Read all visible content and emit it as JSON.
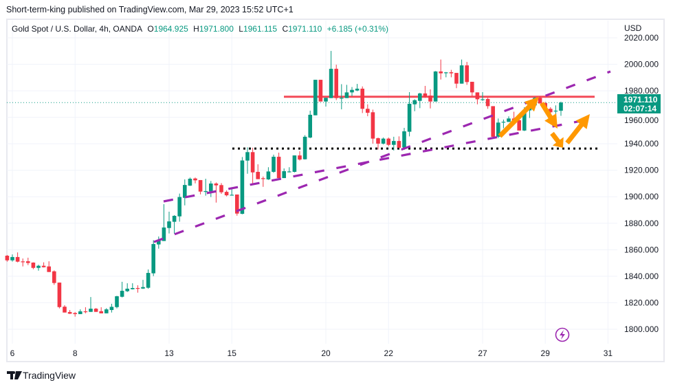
{
  "publisher_line": "Short-term-king published on TradingView.com, Mar 29, 2023 15:52 UTC+1",
  "legend": {
    "symbol": "Gold Spot / U.S. Dollar, 4h, OANDA",
    "open_label": "O",
    "open": "1964.925",
    "high_label": "H",
    "high": "1971.800",
    "low_label": "L",
    "low": "1961.115",
    "close_label": "C",
    "close": "1971.110",
    "change": "+6.185 (+0.31%)"
  },
  "price_tag": {
    "price": "1971.110",
    "countdown": "02:07:14"
  },
  "brand": "TradingView",
  "icons": {
    "logo": "tradingview-logo",
    "alert": "lightning-icon"
  },
  "colors": {
    "up": "#089981",
    "down": "#f23645",
    "trendline": "#9c27b0",
    "arrow": "#ff9800",
    "resistance": "#f23645",
    "support": "#000000"
  },
  "chart_data": {
    "type": "candlestick",
    "currency": "USD",
    "timeframe": "4h",
    "ylim": [
      1790,
      2025
    ],
    "y_ticks": [
      "2020.000",
      "2000.000",
      "1980.000",
      "1960.000",
      "1940.000",
      "1920.000",
      "1900.000",
      "1880.000",
      "1860.000",
      "1840.000",
      "1820.000",
      "1800.000"
    ],
    "x_ticks": [
      "6",
      "8",
      "13",
      "15",
      "20",
      "22",
      "27",
      "29",
      "31"
    ],
    "grid": true,
    "last_price": 1971.11,
    "levels": [
      {
        "kind": "resistance",
        "price": 1975.5,
        "style": "solid"
      },
      {
        "kind": "support",
        "price": 1936.4,
        "style": "dotted"
      }
    ],
    "candles_ohlc": [
      [
        1855.5,
        1856,
        1851,
        1852
      ],
      [
        1852,
        1856.5,
        1851,
        1854.5
      ],
      [
        1854.5,
        1858,
        1850.5,
        1851
      ],
      [
        1851.2,
        1853.4,
        1847.4,
        1851
      ],
      [
        1851.3,
        1854,
        1848.4,
        1850
      ],
      [
        1850.3,
        1850.5,
        1845.3,
        1846.3
      ],
      [
        1846.3,
        1848.7,
        1844.2,
        1847.9
      ],
      [
        1847.9,
        1850.5,
        1846.6,
        1846.8
      ],
      [
        1847.4,
        1851.3,
        1843.2,
        1843.2
      ],
      [
        1843.7,
        1844.4,
        1833.5,
        1834.9
      ],
      [
        1835.2,
        1835.2,
        1815.7,
        1816.7
      ],
      [
        1817,
        1818.1,
        1812.6,
        1812.6
      ],
      [
        1813,
        1814.5,
        1811.5,
        1811.7
      ],
      [
        1812.2,
        1813,
        1809.5,
        1811.4
      ],
      [
        1811.4,
        1815,
        1811.4,
        1813.5
      ],
      [
        1813.5,
        1816.6,
        1812,
        1813.1
      ],
      [
        1813.1,
        1824.3,
        1813.1,
        1815.5
      ],
      [
        1815.5,
        1816,
        1813.1,
        1813.1
      ],
      [
        1813.6,
        1816.6,
        1812,
        1812
      ],
      [
        1812,
        1815.9,
        1812,
        1815
      ],
      [
        1814.5,
        1819.2,
        1812.6,
        1816.9
      ],
      [
        1816.7,
        1825.2,
        1815.7,
        1824.9
      ],
      [
        1824.5,
        1835.8,
        1824,
        1829
      ],
      [
        1828.7,
        1834.7,
        1828.1,
        1830.6
      ],
      [
        1830.2,
        1834.7,
        1830,
        1831.1
      ],
      [
        1831.1,
        1833.2,
        1827.6,
        1830.7
      ],
      [
        1830.7,
        1837.3,
        1830.4,
        1831.8
      ],
      [
        1831.3,
        1845.1,
        1830.6,
        1842.5
      ],
      [
        1842.2,
        1867.2,
        1840.1,
        1864.3
      ],
      [
        1864,
        1870,
        1860.8,
        1867.4
      ],
      [
        1866.6,
        1894.4,
        1866.6,
        1876.8
      ],
      [
        1876.4,
        1888.7,
        1872.3,
        1881.4
      ],
      [
        1881.1,
        1886.1,
        1872.1,
        1885.6
      ],
      [
        1885.2,
        1902.4,
        1881.2,
        1899.8
      ],
      [
        1899.2,
        1913.1,
        1893.5,
        1908.9
      ],
      [
        1908.4,
        1914.5,
        1908.2,
        1913.6
      ],
      [
        1913.8,
        1914.5,
        1910.1,
        1912.4
      ],
      [
        1912.6,
        1912.6,
        1901.8,
        1903.9
      ],
      [
        1904.3,
        1913.6,
        1900.8,
        1904.3
      ],
      [
        1904.1,
        1911.9,
        1899.8,
        1910
      ],
      [
        1910,
        1910.8,
        1895.6,
        1908.6
      ],
      [
        1908.8,
        1910.3,
        1902.2,
        1903.4
      ],
      [
        1903.7,
        1904.8,
        1900.3,
        1901.1
      ],
      [
        1901.5,
        1905.8,
        1901.1,
        1901.5
      ],
      [
        1901.7,
        1901.7,
        1885.7,
        1887.3
      ],
      [
        1887.1,
        1930,
        1886.8,
        1927.4
      ],
      [
        1927.3,
        1937.3,
        1917.4,
        1933.7
      ],
      [
        1933.7,
        1937,
        1909.1,
        1918.4
      ],
      [
        1918.8,
        1924.5,
        1913.3,
        1913.3
      ],
      [
        1914,
        1915.3,
        1907.5,
        1913.6
      ],
      [
        1913.1,
        1922.3,
        1912.7,
        1919.1
      ],
      [
        1918.8,
        1931.8,
        1918.1,
        1930.2
      ],
      [
        1930.2,
        1933.3,
        1914.1,
        1914.1
      ],
      [
        1914.1,
        1921.4,
        1914.1,
        1919.3
      ],
      [
        1919.1,
        1922.3,
        1918.4,
        1919.1
      ],
      [
        1918.8,
        1931.2,
        1918.4,
        1931.2
      ],
      [
        1931.2,
        1934.4,
        1927.4,
        1928.1
      ],
      [
        1928.3,
        1946.5,
        1928.1,
        1945.3
      ],
      [
        1944.7,
        1965,
        1944.2,
        1961.9
      ],
      [
        1961.5,
        1988.3,
        1961.5,
        1988.3
      ],
      [
        1988.3,
        1988.3,
        1971.9,
        1971.9
      ],
      [
        1971.9,
        1974.7,
        1968.1,
        1974.7
      ],
      [
        1974.5,
        2010.1,
        1974.5,
        1996.6
      ],
      [
        1996.6,
        1999.7,
        1973,
        1974.5
      ],
      [
        1974.7,
        1985,
        1966,
        1974.7
      ],
      [
        1974.5,
        1984.5,
        1974.5,
        1978.8
      ],
      [
        1978.8,
        1982.8,
        1975.9,
        1980.7
      ],
      [
        1980.2,
        1985.2,
        1979.7,
        1981.6
      ],
      [
        1981.6,
        1983.3,
        1963.2,
        1966.4
      ],
      [
        1966.4,
        1969.8,
        1960.8,
        1963.4
      ],
      [
        1963.8,
        1965.8,
        1940.1,
        1943.9
      ],
      [
        1944.2,
        1944.7,
        1935.7,
        1940.1
      ],
      [
        1940.1,
        1944.7,
        1939.5,
        1943.9
      ],
      [
        1943.9,
        1944.7,
        1938.2,
        1939.2
      ],
      [
        1939.2,
        1945.3,
        1934.9,
        1942.1
      ],
      [
        1942.1,
        1945.6,
        1937,
        1937
      ],
      [
        1937.3,
        1952,
        1937,
        1949.4
      ],
      [
        1949.1,
        1979,
        1945.6,
        1970.2
      ],
      [
        1969.8,
        1973.6,
        1964.6,
        1972.9
      ],
      [
        1972.4,
        1978.5,
        1966.9,
        1978
      ],
      [
        1978,
        1983.7,
        1974.7,
        1975.4
      ],
      [
        1976.4,
        1981.1,
        1966.7,
        1971.9
      ],
      [
        1971.9,
        1994.9,
        1971.9,
        1994.6
      ],
      [
        1994.6,
        2003.6,
        1988.5,
        1993.2
      ],
      [
        1993.9,
        1994.2,
        1990.2,
        1993.9
      ],
      [
        1994,
        1995.8,
        1990.2,
        1993.2
      ],
      [
        1993.5,
        1993.5,
        1982,
        1985.4
      ],
      [
        1985.4,
        2003.6,
        1985.4,
        1999.2
      ],
      [
        1999.2,
        2001.8,
        1984.5,
        1986.6
      ],
      [
        1986.8,
        1986.8,
        1975.9,
        1978.8
      ],
      [
        1978.8,
        1978.8,
        1969.8,
        1973.6
      ],
      [
        1973.6,
        1979,
        1972.4,
        1973.6
      ],
      [
        1973.8,
        1974.7,
        1966.4,
        1968.4
      ],
      [
        1968.4,
        1968.4,
        1944.3,
        1945.3
      ],
      [
        1945.3,
        1959.1,
        1944.3,
        1956
      ],
      [
        1956.4,
        1958.3,
        1951.7,
        1956.6
      ],
      [
        1956.5,
        1960.7,
        1956.5,
        1959.1
      ],
      [
        1959.1,
        1964.2,
        1957.4,
        1957.4
      ],
      [
        1957.8,
        1960.7,
        1950,
        1950
      ],
      [
        1950,
        1967.6,
        1949.6,
        1965.5
      ],
      [
        1965.2,
        1971.1,
        1959.5,
        1969.3
      ],
      [
        1969,
        1975.4,
        1969,
        1974.7
      ],
      [
        1974.7,
        1975.9,
        1970.4,
        1970.4
      ],
      [
        1970.7,
        1971.6,
        1963.8,
        1966.1
      ],
      [
        1966.4,
        1967.6,
        1959,
        1963.8
      ],
      [
        1964.7,
        1969,
        1962.1,
        1965
      ],
      [
        1964.925,
        1971.8,
        1961.115,
        1971.11
      ]
    ]
  }
}
